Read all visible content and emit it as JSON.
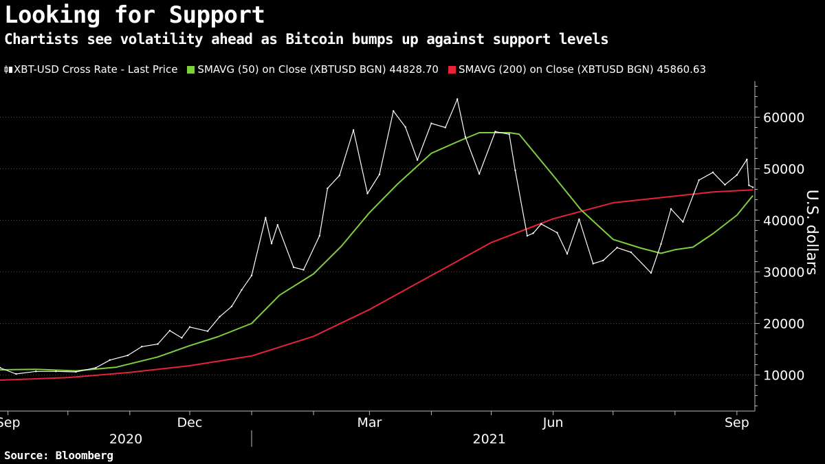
{
  "title": "Looking for Support",
  "subtitle": "Chartists see volatility ahead as Bitcoin bumps up against support levels",
  "source": "Source: Bloomberg",
  "legend": [
    {
      "label": "XBT-USD Cross Rate - Last Price",
      "color": "#ffffff",
      "icon": "candlestick-icon"
    },
    {
      "label": "SMAVG (50)  on Close (XBTUSD BGN) 44828.70",
      "color": "#7fcf3f"
    },
    {
      "label": "SMAVG (200)  on Close (XBTUSD BGN) 45860.63",
      "color": "#e8223a"
    }
  ],
  "chart_data": {
    "type": "line",
    "ylabel": "U.S. dollars",
    "ylim": [
      3000,
      67000
    ],
    "yticks": [
      10000,
      20000,
      30000,
      40000,
      50000,
      60000
    ],
    "ytick_labels": [
      "10000",
      "20000",
      "30000",
      "40000",
      "50000",
      "60000"
    ],
    "x_start": "2020-08-28",
    "x_end": "2021-09-10",
    "month_labels": [
      {
        "date": "2020-09-01",
        "label": "Sep"
      },
      {
        "date": "2020-12-01",
        "label": "Dec"
      },
      {
        "date": "2021-03-01",
        "label": "Mar"
      },
      {
        "date": "2021-06-01",
        "label": "Jun"
      },
      {
        "date": "2021-09-01",
        "label": "Sep"
      }
    ],
    "year_labels": [
      {
        "date": "2020-10-30",
        "label": "2020"
      },
      {
        "date": "2021-04-30",
        "label": "2021"
      }
    ],
    "year_separator": "2021-01-01",
    "series": [
      {
        "name": "XBT-USD Cross Rate - Last Price",
        "color": "#ffffff",
        "points": [
          [
            "2020-08-28",
            11400
          ],
          [
            "2020-09-05",
            10200
          ],
          [
            "2020-09-15",
            10700
          ],
          [
            "2020-09-25",
            10700
          ],
          [
            "2020-10-05",
            10600
          ],
          [
            "2020-10-15",
            11400
          ],
          [
            "2020-10-22",
            12900
          ],
          [
            "2020-10-31",
            13800
          ],
          [
            "2020-11-07",
            15500
          ],
          [
            "2020-11-15",
            16000
          ],
          [
            "2020-11-21",
            18600
          ],
          [
            "2020-11-27",
            17200
          ],
          [
            "2020-12-01",
            19300
          ],
          [
            "2020-12-10",
            18500
          ],
          [
            "2020-12-16",
            21300
          ],
          [
            "2020-12-22",
            23300
          ],
          [
            "2020-12-27",
            26500
          ],
          [
            "2021-01-01",
            29300
          ],
          [
            "2021-01-08",
            40500
          ],
          [
            "2021-01-11",
            35500
          ],
          [
            "2021-01-14",
            39100
          ],
          [
            "2021-01-22",
            30900
          ],
          [
            "2021-01-27",
            30400
          ],
          [
            "2021-02-04",
            37000
          ],
          [
            "2021-02-08",
            46200
          ],
          [
            "2021-02-14",
            48700
          ],
          [
            "2021-02-21",
            57500
          ],
          [
            "2021-02-28",
            45200
          ],
          [
            "2021-03-06",
            48900
          ],
          [
            "2021-03-13",
            61200
          ],
          [
            "2021-03-19",
            58100
          ],
          [
            "2021-03-25",
            51700
          ],
          [
            "2021-04-01",
            58800
          ],
          [
            "2021-04-08",
            58000
          ],
          [
            "2021-04-14",
            63500
          ],
          [
            "2021-04-18",
            56200
          ],
          [
            "2021-04-25",
            49000
          ],
          [
            "2021-05-03",
            57200
          ],
          [
            "2021-05-10",
            56700
          ],
          [
            "2021-05-13",
            49700
          ],
          [
            "2021-05-19",
            37000
          ],
          [
            "2021-05-22",
            37500
          ],
          [
            "2021-05-26",
            39300
          ],
          [
            "2021-06-03",
            37600
          ],
          [
            "2021-06-08",
            33500
          ],
          [
            "2021-06-14",
            40200
          ],
          [
            "2021-06-21",
            31600
          ],
          [
            "2021-06-26",
            32200
          ],
          [
            "2021-07-03",
            34700
          ],
          [
            "2021-07-10",
            33800
          ],
          [
            "2021-07-20",
            29800
          ],
          [
            "2021-07-25",
            35400
          ],
          [
            "2021-07-30",
            42200
          ],
          [
            "2021-08-05",
            39700
          ],
          [
            "2021-08-13",
            47800
          ],
          [
            "2021-08-20",
            49300
          ],
          [
            "2021-08-26",
            46900
          ],
          [
            "2021-09-01",
            48800
          ],
          [
            "2021-09-06",
            51800
          ],
          [
            "2021-09-07",
            46800
          ],
          [
            "2021-09-09",
            46400
          ]
        ]
      },
      {
        "name": "SMAVG (50)  on Close (XBTUSD BGN) 44828.70",
        "color": "#7fcf3f",
        "points": [
          [
            "2020-08-28",
            11000
          ],
          [
            "2020-09-15",
            11100
          ],
          [
            "2020-10-05",
            10800
          ],
          [
            "2020-10-25",
            11500
          ],
          [
            "2020-11-15",
            13500
          ],
          [
            "2020-12-01",
            15700
          ],
          [
            "2020-12-15",
            17400
          ],
          [
            "2021-01-01",
            20000
          ],
          [
            "2021-01-15",
            25500
          ],
          [
            "2021-02-01",
            29600
          ],
          [
            "2021-02-15",
            35000
          ],
          [
            "2021-03-01",
            41500
          ],
          [
            "2021-03-15",
            47000
          ],
          [
            "2021-04-01",
            53000
          ],
          [
            "2021-04-15",
            55400
          ],
          [
            "2021-04-25",
            57000
          ],
          [
            "2021-05-10",
            57000
          ],
          [
            "2021-05-15",
            56700
          ],
          [
            "2021-06-01",
            48700
          ],
          [
            "2021-06-15",
            42000
          ],
          [
            "2021-07-01",
            36300
          ],
          [
            "2021-07-15",
            34600
          ],
          [
            "2021-07-25",
            33600
          ],
          [
            "2021-08-01",
            34300
          ],
          [
            "2021-08-10",
            34800
          ],
          [
            "2021-08-20",
            37400
          ],
          [
            "2021-09-01",
            41000
          ],
          [
            "2021-09-09",
            44800
          ]
        ]
      },
      {
        "name": "SMAVG (200)  on Close (XBTUSD BGN) 45860.63",
        "color": "#e8223a",
        "points": [
          [
            "2020-08-28",
            9000
          ],
          [
            "2020-10-01",
            9500
          ],
          [
            "2020-11-01",
            10500
          ],
          [
            "2020-12-01",
            11800
          ],
          [
            "2021-01-01",
            13700
          ],
          [
            "2021-02-01",
            17500
          ],
          [
            "2021-03-01",
            22700
          ],
          [
            "2021-04-01",
            29300
          ],
          [
            "2021-05-01",
            35700
          ],
          [
            "2021-06-01",
            40300
          ],
          [
            "2021-07-01",
            43400
          ],
          [
            "2021-08-01",
            44700
          ],
          [
            "2021-08-20",
            45500
          ],
          [
            "2021-09-09",
            45900
          ]
        ]
      }
    ]
  }
}
